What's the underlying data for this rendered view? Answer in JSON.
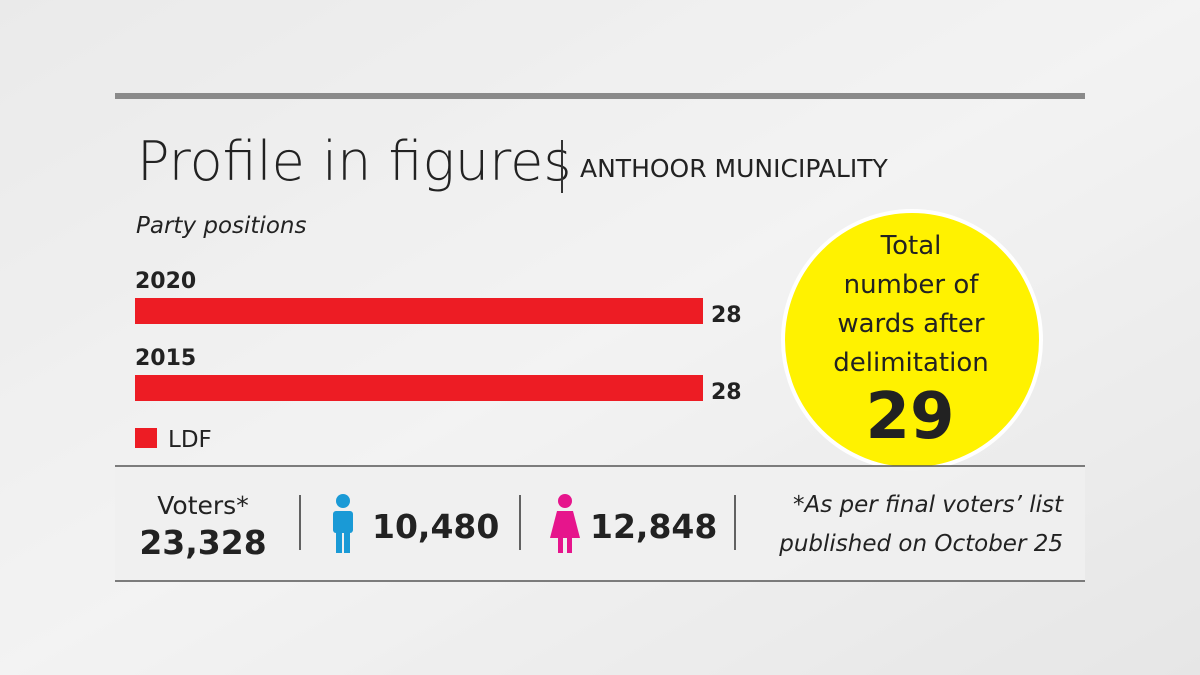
{
  "header": {
    "title": "Profile in figures",
    "subtitle": "ANTHOOR MUNICIPALITY"
  },
  "chart_data": {
    "type": "bar",
    "orientation": "horizontal",
    "title": "Party positions",
    "categories": [
      "2020",
      "2015"
    ],
    "series": [
      {
        "name": "LDF",
        "color": "#ed1c24",
        "values": [
          28,
          28
        ]
      }
    ]
  },
  "callout": {
    "text_lines": [
      "Total",
      "number of",
      "wards after",
      "delimitation"
    ],
    "value": 29
  },
  "voters": {
    "label": "Voters*",
    "total": "23,328",
    "men": "10,480",
    "women": "12,848",
    "note_lines": [
      "*As per final voters’ list",
      "published on October 25"
    ]
  }
}
